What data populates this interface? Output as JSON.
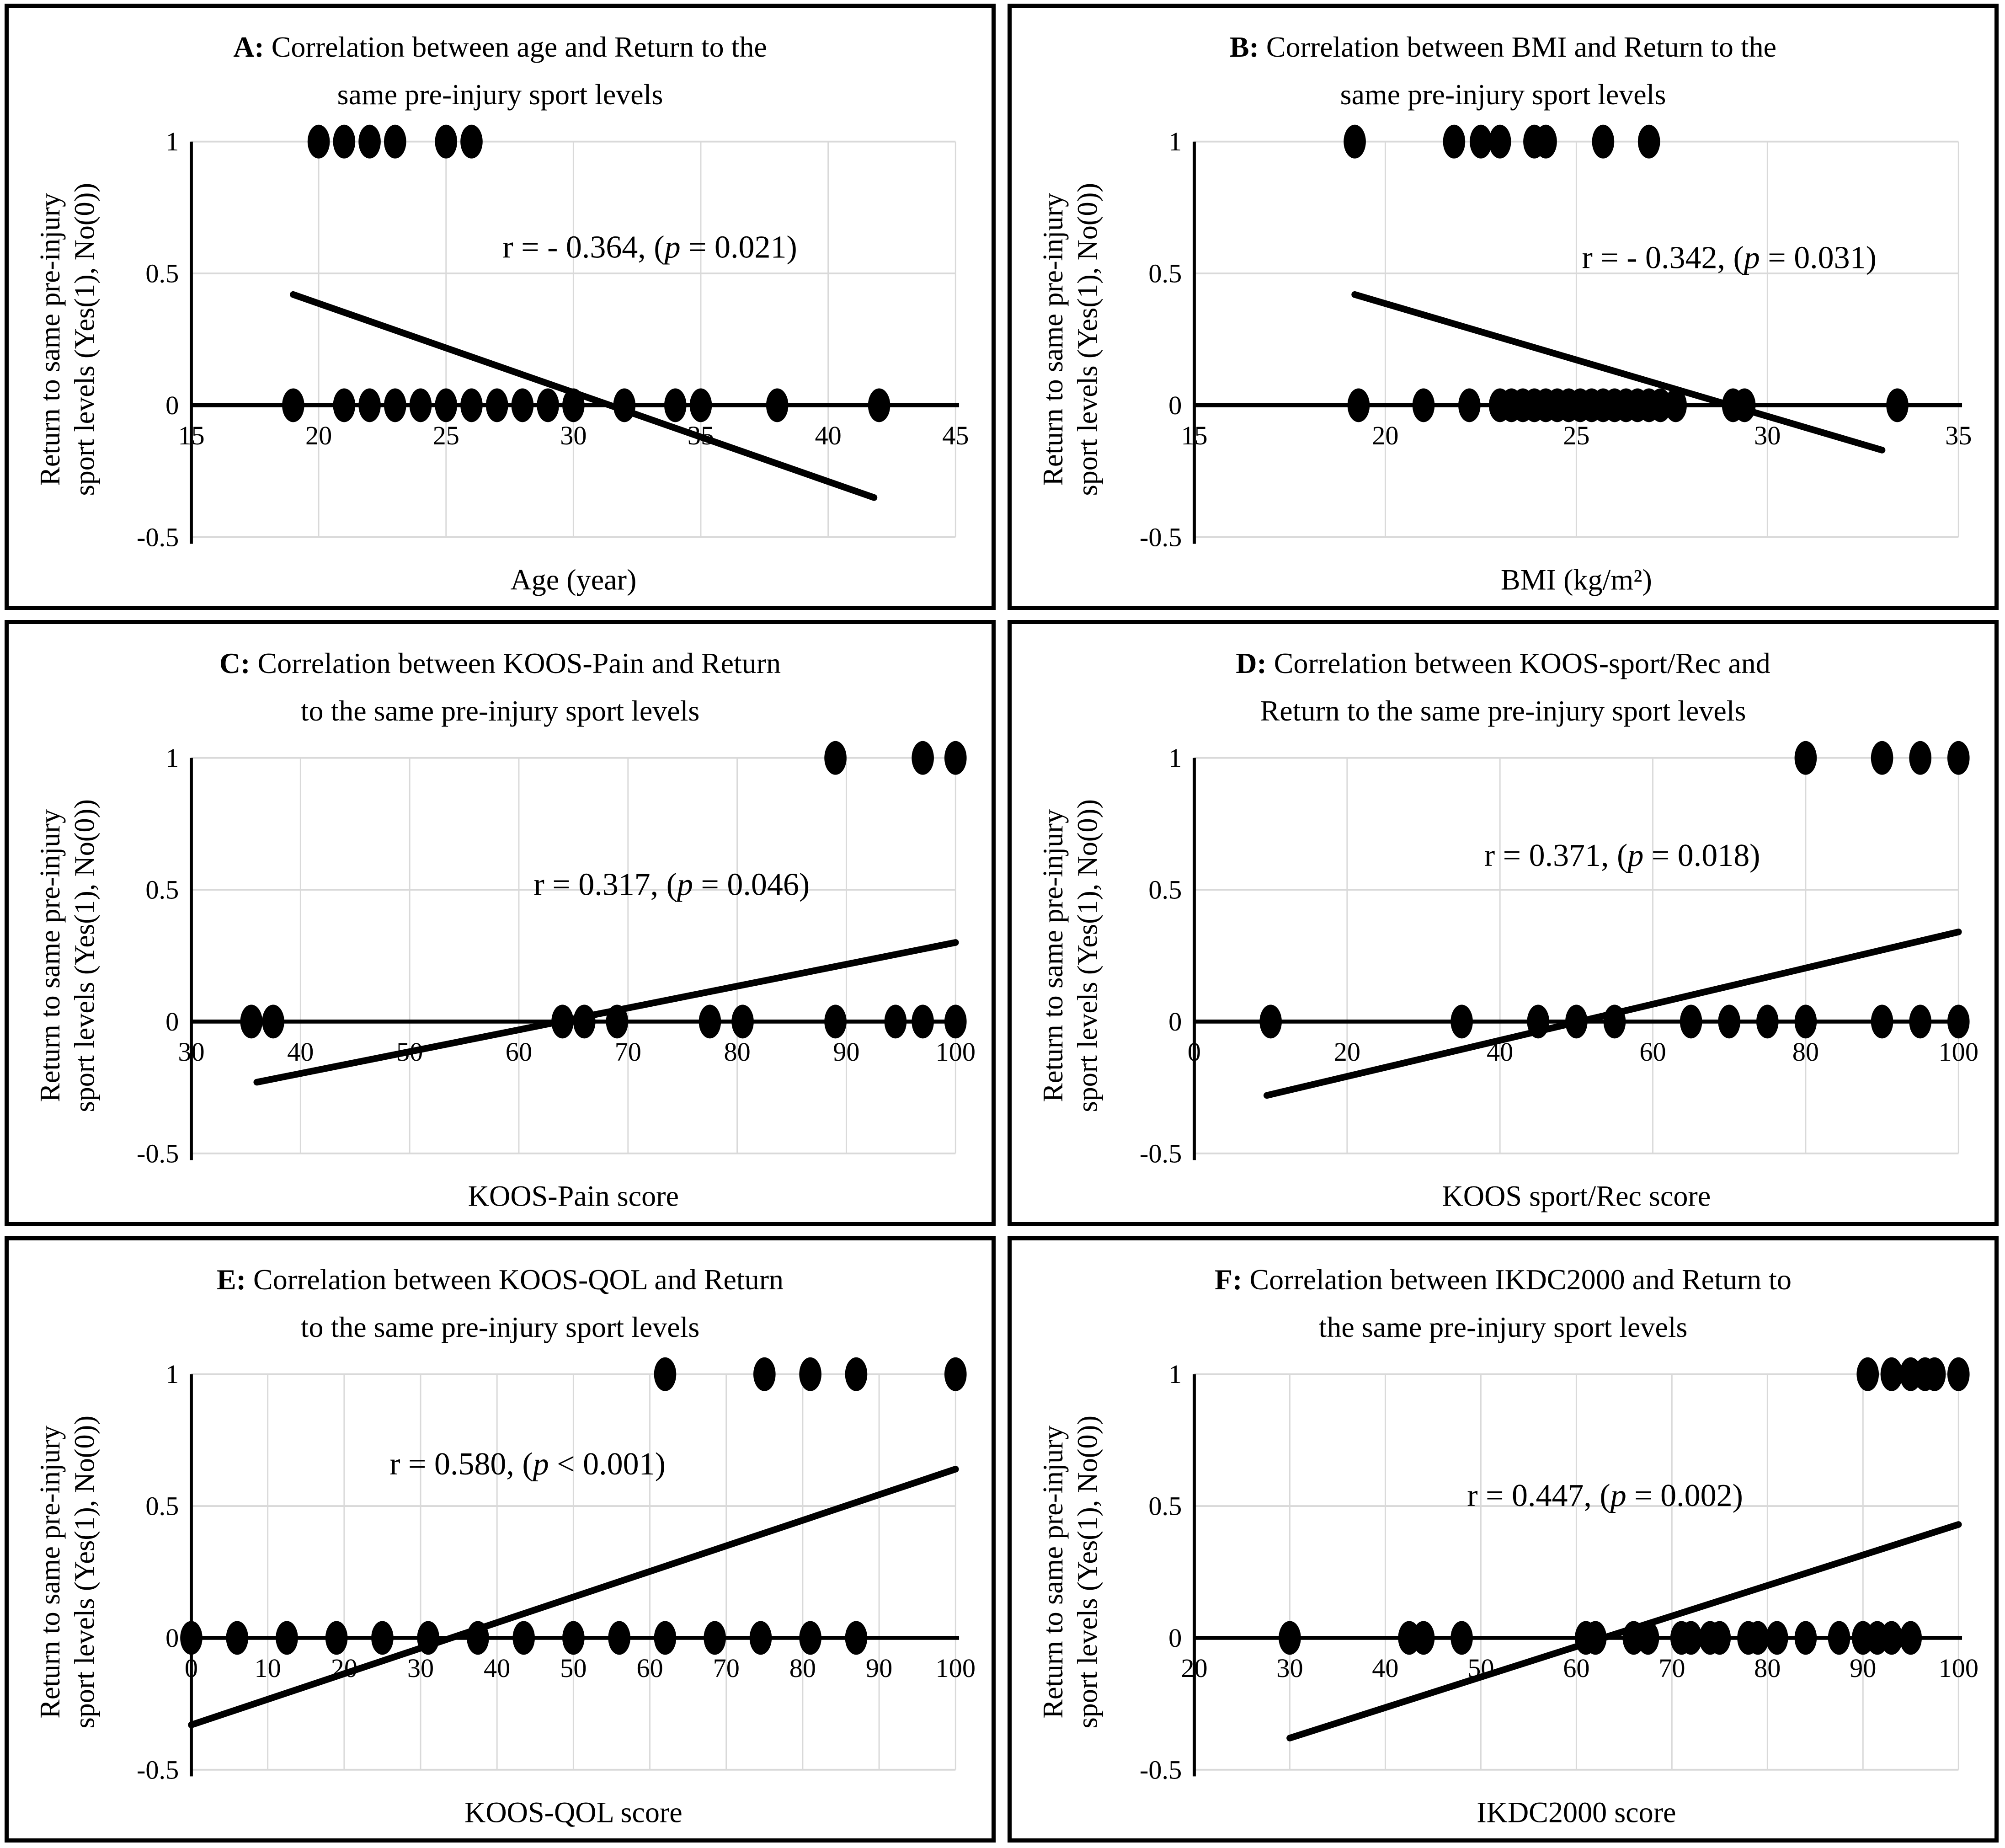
{
  "figure": {
    "background": "#ffffff",
    "y_axis_label_line1": "Return to same pre-injury",
    "y_axis_label_line2": "sport levels  (Yes(1), No(0))",
    "y_ticks": [
      {
        "value": 1,
        "label": "1"
      },
      {
        "value": 0.5,
        "label": "0.5"
      },
      {
        "value": 0,
        "label": "0"
      },
      {
        "value": -0.5,
        "label": "-0.5"
      }
    ],
    "colors": {
      "dot": "#000000",
      "trend": "#000000",
      "axis": "#000000",
      "grid": "#d9d9d9",
      "panel_border": "#000000"
    }
  },
  "chart_data": [
    {
      "id": "A",
      "type": "scatter",
      "title_prefix": "A:",
      "title_line1": " Correlation between age and Return to the",
      "title_line2": "same pre-injury sport levels",
      "xlabel": "Age (year)",
      "x_ticks": [
        15,
        20,
        25,
        30,
        35,
        40,
        45
      ],
      "xlim": [
        15,
        45
      ],
      "ylim": [
        -0.5,
        1
      ],
      "r": -0.364,
      "p_value": "0.021",
      "annotation": {
        "pre": "r = - 0.364, (",
        "italic": "p",
        "post": " = 0.021)",
        "x": 33,
        "y": 0.6
      },
      "points_y1": [
        20,
        21,
        22,
        23,
        25,
        26
      ],
      "points_y0": [
        19,
        21,
        22,
        23,
        24,
        25,
        26,
        27,
        28,
        29,
        30,
        32,
        34,
        35,
        38,
        42
      ],
      "trendline": {
        "x1": 19,
        "y1": 0.42,
        "x2": 41.8,
        "y2": -0.35
      }
    },
    {
      "id": "B",
      "type": "scatter",
      "title_prefix": "B:",
      "title_line1": " Correlation between BMI and Return to the",
      "title_line2": "same pre-injury sport levels",
      "xlabel": "BMI (kg/m²)",
      "x_ticks": [
        15,
        20,
        25,
        30,
        35
      ],
      "xlim": [
        15,
        35
      ],
      "ylim": [
        -0.5,
        1
      ],
      "r": -0.342,
      "p_value": "0.031",
      "annotation": {
        "pre": "r = - 0.342, (",
        "italic": "p",
        "post": " = 0.031)",
        "x": 29,
        "y": 0.56
      },
      "points_y1": [
        19.2,
        21.8,
        22.5,
        23,
        23.9,
        24.2,
        25.7,
        26.9
      ],
      "points_y0": [
        19.3,
        21,
        22.2,
        23,
        23.3,
        23.6,
        23.9,
        24.2,
        24.5,
        24.8,
        25.1,
        25.4,
        25.7,
        26,
        26.3,
        26.6,
        26.9,
        27.2,
        27.6,
        29.1,
        29.4,
        33.4
      ],
      "trendline": {
        "x1": 19.2,
        "y1": 0.42,
        "x2": 33,
        "y2": -0.17
      }
    },
    {
      "id": "C",
      "type": "scatter",
      "title_prefix": "C:",
      "title_line1": " Correlation between KOOS-Pain and Return",
      "title_line2": "to the same pre-injury sport levels",
      "xlabel": "KOOS-Pain score",
      "x_ticks": [
        30,
        40,
        50,
        60,
        70,
        80,
        90,
        100
      ],
      "xlim": [
        30,
        100
      ],
      "ylim": [
        -0.5,
        1
      ],
      "r": 0.317,
      "p_value": "0.046",
      "annotation": {
        "pre": "r = 0.317, (",
        "italic": "p",
        "post": " = 0.046)",
        "x": 74,
        "y": 0.52
      },
      "points_y1": [
        89,
        97,
        100
      ],
      "points_y0": [
        35.5,
        37.5,
        64,
        66,
        69,
        77.5,
        80.5,
        89,
        94.5,
        97,
        100
      ],
      "trendline": {
        "x1": 36,
        "y1": -0.23,
        "x2": 100,
        "y2": 0.3
      }
    },
    {
      "id": "D",
      "type": "scatter",
      "title_prefix": "D:",
      "title_line1": " Correlation between KOOS-sport/Rec and",
      "title_line2": "Return to the same pre-injury sport levels",
      "xlabel": "KOOS sport/Rec score",
      "x_ticks": [
        0,
        20,
        40,
        60,
        80,
        100
      ],
      "xlim": [
        0,
        100
      ],
      "ylim": [
        -0.5,
        1
      ],
      "r": 0.371,
      "p_value": "0.018",
      "annotation": {
        "pre": "r = 0.371, (",
        "italic": "p",
        "post": " = 0.018)",
        "x": 56,
        "y": 0.63
      },
      "points_y1": [
        80,
        90,
        95,
        100
      ],
      "points_y0": [
        10,
        35,
        45,
        50,
        55,
        65,
        70,
        75,
        80,
        90,
        95,
        100
      ],
      "trendline": {
        "x1": 9.5,
        "y1": -0.28,
        "x2": 100,
        "y2": 0.34
      }
    },
    {
      "id": "E",
      "type": "scatter",
      "title_prefix": "E:",
      "title_line1": " Correlation between KOOS-QOL and Return",
      "title_line2": "to the same pre-injury sport levels",
      "xlabel": "KOOS-QOL score",
      "x_ticks": [
        0,
        10,
        20,
        30,
        40,
        50,
        60,
        70,
        80,
        90,
        100
      ],
      "xlim": [
        0,
        100
      ],
      "ylim": [
        -0.5,
        1
      ],
      "r": 0.58,
      "p_value": "< 0.001",
      "annotation": {
        "pre": "r = 0.580, (",
        "italic": "p",
        "post": " < 0.001)",
        "x": 44,
        "y": 0.66
      },
      "points_y1": [
        62,
        75,
        81,
        87,
        100
      ],
      "points_y0": [
        0,
        6,
        12.5,
        19,
        25,
        31,
        37.5,
        43.5,
        50,
        56,
        62,
        68.5,
        74.5,
        81,
        87
      ],
      "trendline": {
        "x1": 0,
        "y1": -0.33,
        "x2": 100,
        "y2": 0.64
      }
    },
    {
      "id": "F",
      "type": "scatter",
      "title_prefix": "F:",
      "title_line1": " Correlation between IKDC2000 and Return to",
      "title_line2": "the same pre-injury sport levels",
      "xlabel": "IKDC2000 score",
      "x_ticks": [
        20,
        30,
        40,
        50,
        60,
        70,
        80,
        90,
        100
      ],
      "xlim": [
        20,
        100
      ],
      "ylim": [
        -0.5,
        1
      ],
      "r": 0.447,
      "p_value": "0.002",
      "annotation": {
        "pre": "r = 0.447, (",
        "italic": "p",
        "post": " = 0.002)",
        "x": 63,
        "y": 0.54
      },
      "points_y1": [
        90.5,
        93,
        95,
        96.5,
        97.5,
        100
      ],
      "points_y0": [
        30,
        42.5,
        44,
        48,
        61,
        62,
        66,
        67.5,
        71,
        72,
        74,
        75,
        78,
        79,
        81,
        84,
        87.5,
        90,
        91.5,
        93,
        95
      ],
      "trendline": {
        "x1": 30,
        "y1": -0.38,
        "x2": 100,
        "y2": 0.43
      }
    }
  ]
}
